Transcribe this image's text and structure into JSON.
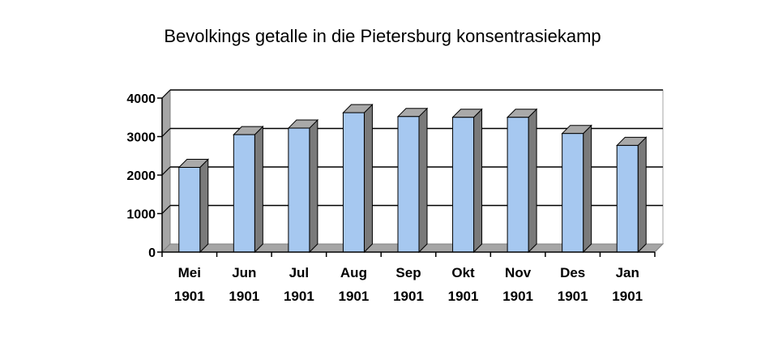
{
  "chart_data": {
    "type": "bar",
    "title": "Bevolkings getalle in die Pietersburg konsentrasiekamp",
    "xlabel": "",
    "ylabel": "",
    "categories": [
      "Mei 1901",
      "Jun 1901",
      "Jul 1901",
      "Aug 1901",
      "Sep 1901",
      "Okt 1901",
      "Nov 1901",
      "Des 1901",
      "Jan 1901"
    ],
    "category_lines": [
      [
        "Mei",
        "1901"
      ],
      [
        "Jun",
        "1901"
      ],
      [
        "Jul",
        "1901"
      ],
      [
        "Aug",
        "1901"
      ],
      [
        "Sep",
        "1901"
      ],
      [
        "Okt",
        "1901"
      ],
      [
        "Nov",
        "1901"
      ],
      [
        "Des",
        "1901"
      ],
      [
        "Jan",
        "1901"
      ]
    ],
    "values": [
      2200,
      3050,
      3220,
      3620,
      3520,
      3500,
      3500,
      3080,
      2770
    ],
    "ylim": [
      0,
      4000
    ],
    "yticks": [
      "0",
      "1000",
      "2000",
      "3000",
      "4000"
    ],
    "grid": true,
    "legend": "none",
    "style": "3d-columns",
    "colors": {
      "bar_front": "#a6c8f0",
      "bar_top": "#a9a9a9",
      "bar_side": "#7a7a7a",
      "gridline": "#000000",
      "walls": "#a6a6a6"
    }
  }
}
